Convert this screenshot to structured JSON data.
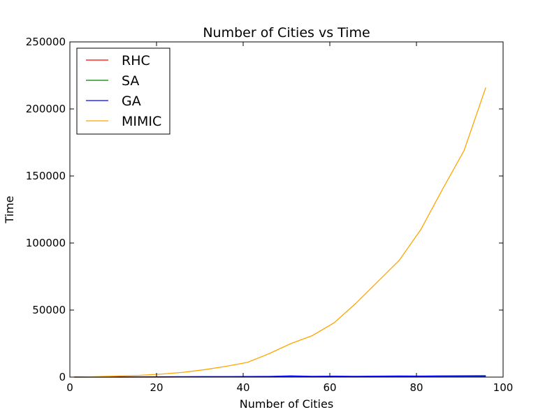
{
  "chart_data": {
    "type": "line",
    "title": "Number of Cities vs Time",
    "xlabel": "Number of Cities",
    "ylabel": "Time",
    "xlim": [
      0,
      100
    ],
    "ylim": [
      0,
      250000
    ],
    "xticks": [
      0,
      20,
      40,
      60,
      80,
      100
    ],
    "yticks": [
      0,
      50000,
      100000,
      150000,
      200000,
      250000
    ],
    "grid": false,
    "legend_position": "top-left",
    "x": [
      1,
      6,
      11,
      16,
      21,
      26,
      31,
      36,
      41,
      46,
      51,
      56,
      61,
      66,
      71,
      76,
      81,
      86,
      91,
      96
    ],
    "series": [
      {
        "name": "RHC",
        "color": "#ff0000",
        "values": [
          0,
          10,
          20,
          30,
          40,
          60,
          80,
          100,
          130,
          160,
          200,
          240,
          280,
          320,
          360,
          400,
          450,
          500,
          550,
          600
        ]
      },
      {
        "name": "SA",
        "color": "#008000",
        "values": [
          0,
          20,
          40,
          60,
          80,
          110,
          140,
          170,
          210,
          250,
          300,
          350,
          400,
          450,
          500,
          550,
          600,
          650,
          700,
          750
        ]
      },
      {
        "name": "GA",
        "color": "#0000ff",
        "values": [
          50,
          100,
          150,
          200,
          250,
          300,
          350,
          400,
          450,
          500,
          900,
          600,
          700,
          600,
          700,
          800,
          750,
          900,
          950,
          1000
        ]
      },
      {
        "name": "MIMIC",
        "color": "#ffa500",
        "values": [
          0,
          300,
          800,
          1300,
          2200,
          3500,
          5500,
          8000,
          11000,
          17500,
          25000,
          31000,
          40500,
          55000,
          71000,
          87000,
          110000,
          140000,
          169000,
          216000
        ]
      }
    ]
  }
}
